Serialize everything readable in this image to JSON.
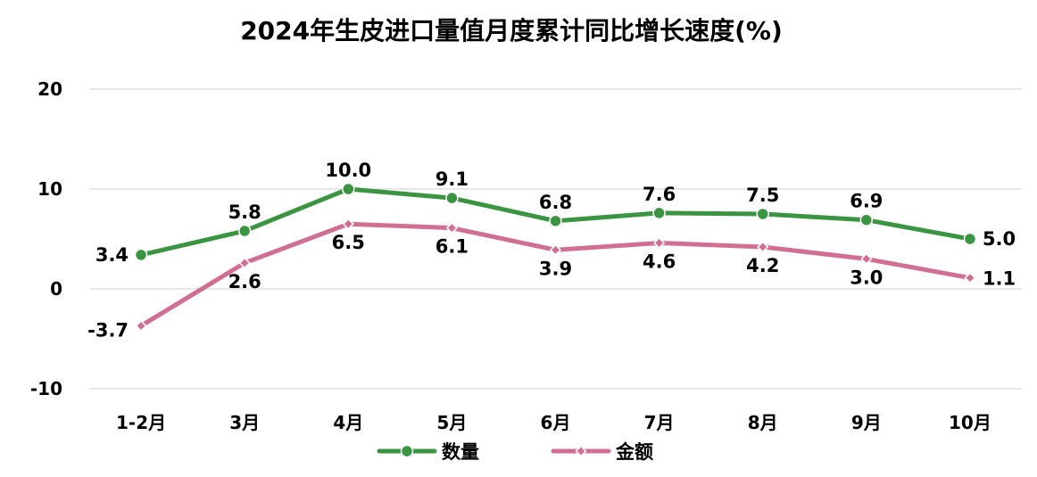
{
  "chart_data": {
    "type": "line",
    "title": "2024年生皮进口量值月度累计同比增长速度(%)",
    "categories": [
      "1-2月",
      "3月",
      "4月",
      "5月",
      "6月",
      "7月",
      "8月",
      "9月",
      "10月"
    ],
    "series": [
      {
        "name": "数量",
        "color": "#3a9442",
        "marker": "circle",
        "values": [
          3.4,
          5.8,
          10.0,
          9.1,
          6.8,
          7.6,
          7.5,
          6.9,
          5.0
        ],
        "labels": [
          "3.4",
          "5.8",
          "10.0",
          "9.1",
          "6.8",
          "7.6",
          "7.5",
          "6.9",
          "5.0"
        ]
      },
      {
        "name": "金额",
        "color": "#d06f93",
        "marker": "diamond",
        "values": [
          -3.7,
          2.6,
          6.5,
          6.1,
          3.9,
          4.6,
          4.2,
          3.0,
          1.1
        ],
        "labels": [
          "-3.7",
          "2.6",
          "6.5",
          "6.1",
          "3.9",
          "4.6",
          "4.2",
          "3.0",
          "1.1"
        ]
      }
    ],
    "ylim": [
      -10,
      20
    ],
    "yticks": [
      "-10",
      "0",
      "10",
      "20"
    ],
    "grid": true,
    "legend": "bottom"
  }
}
